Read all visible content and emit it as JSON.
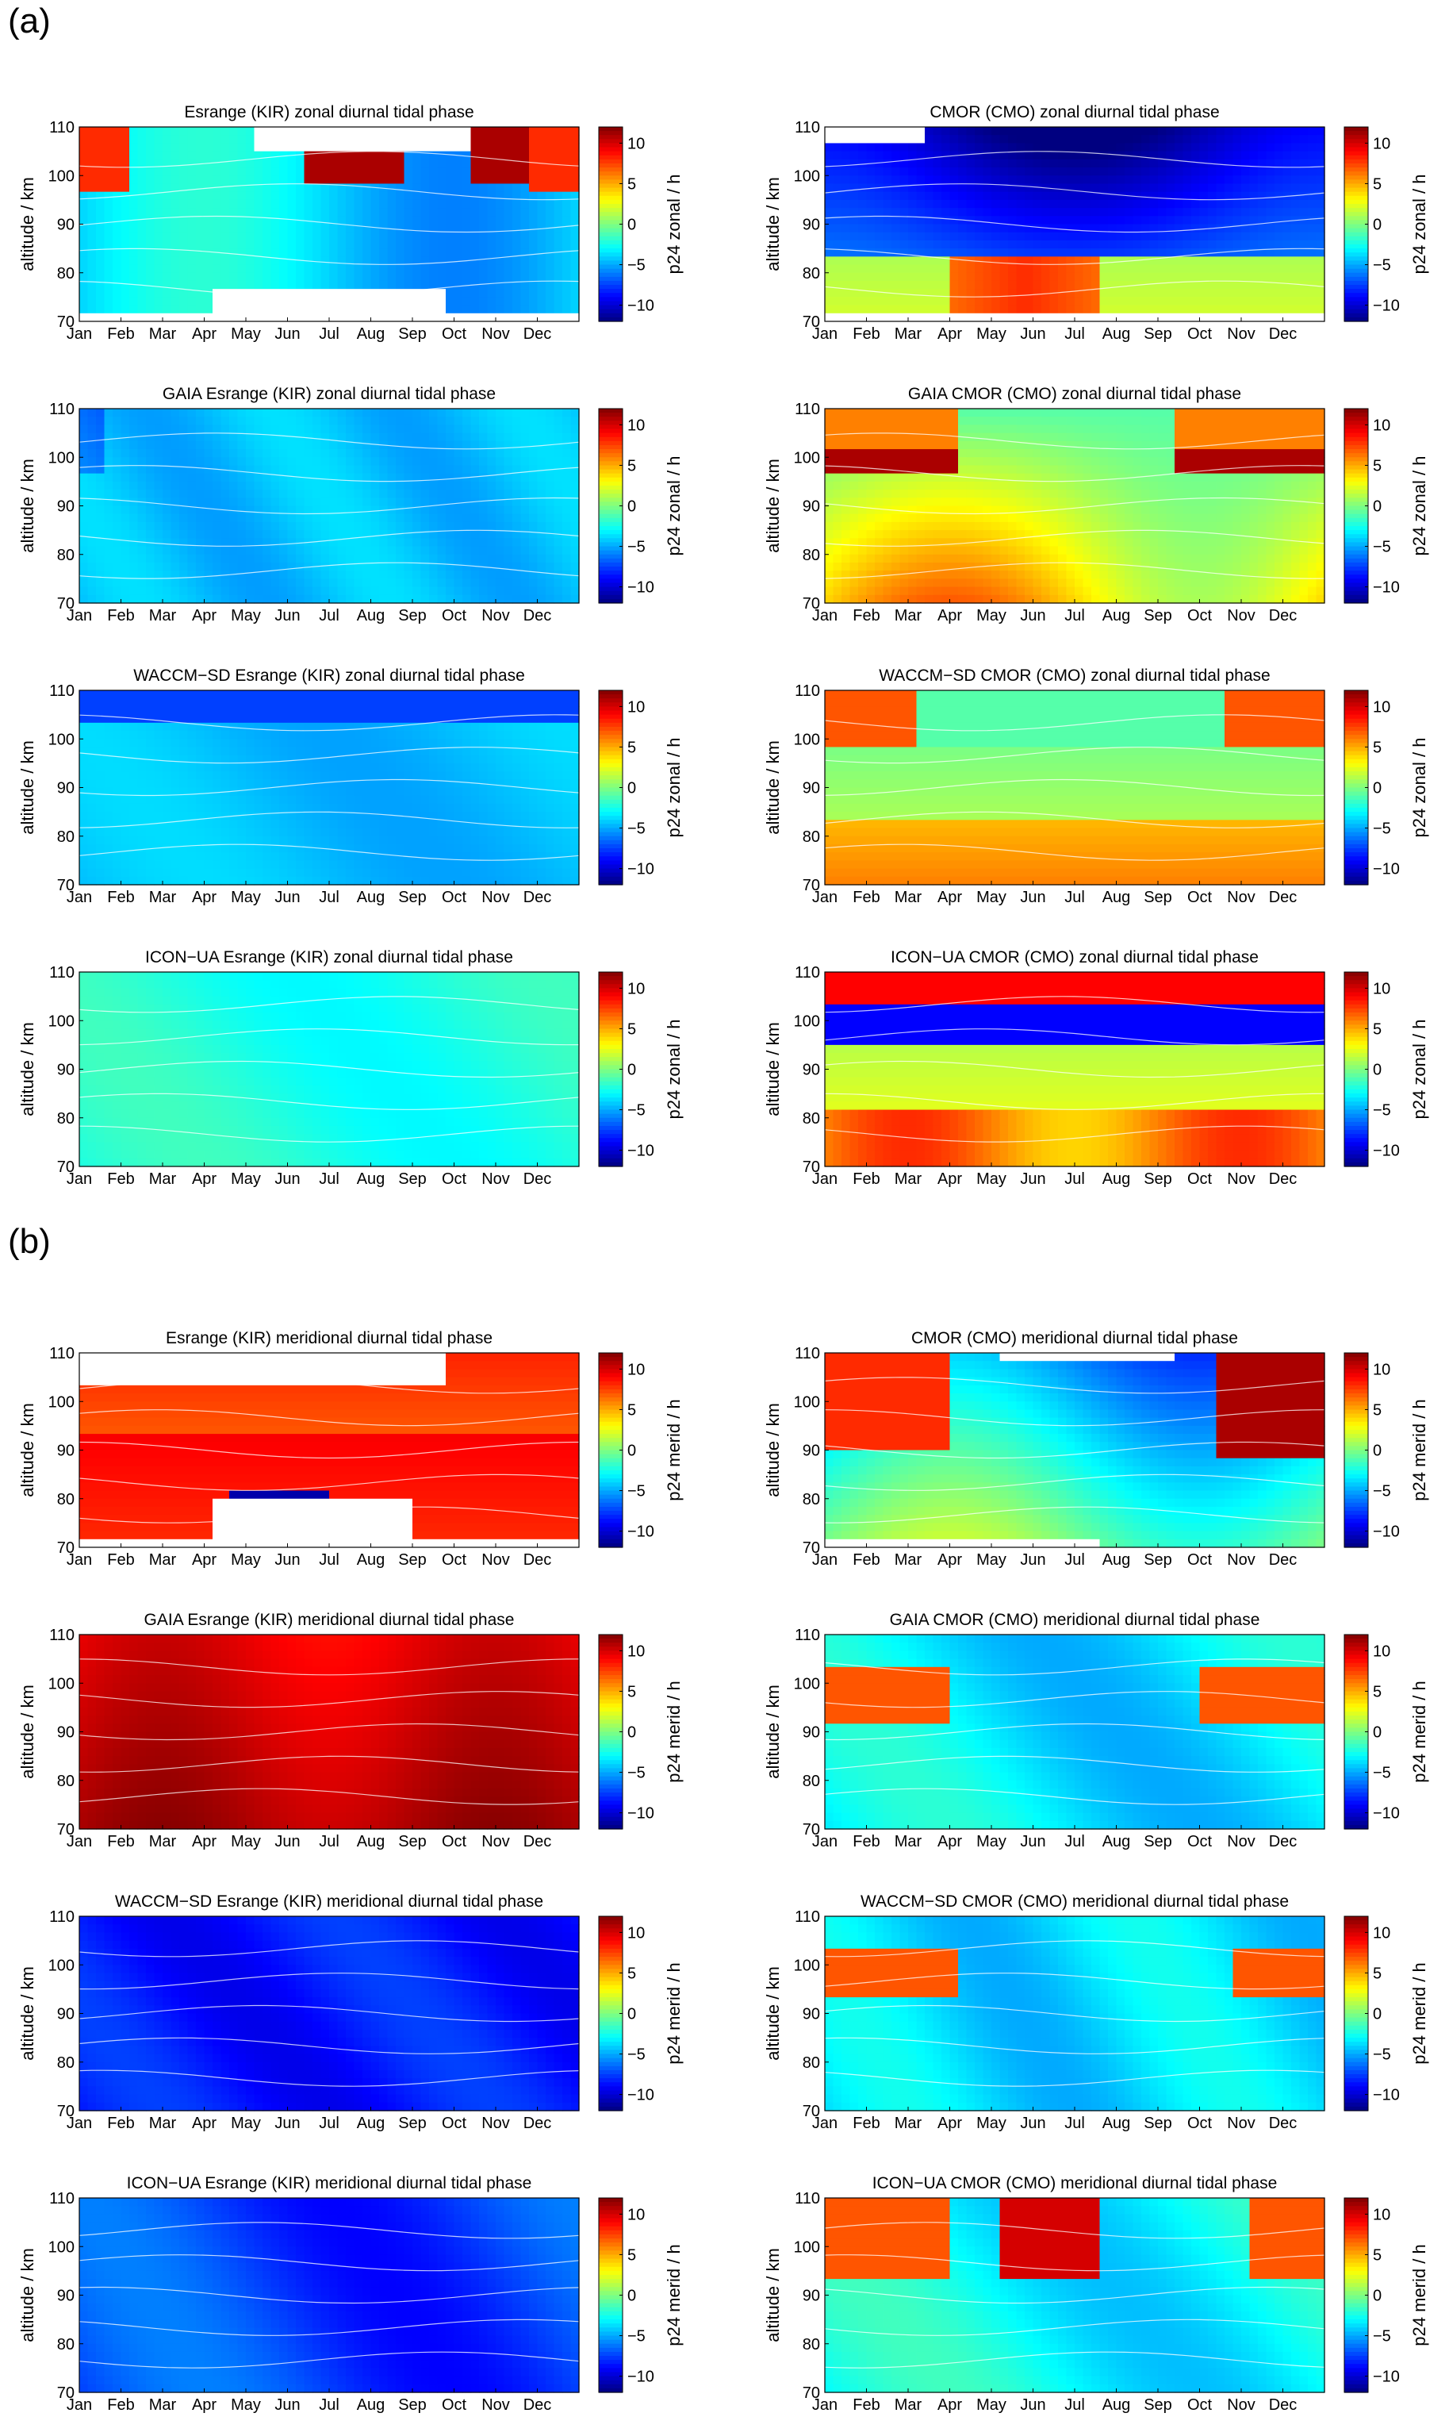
{
  "sections": [
    {
      "label": "(a)"
    },
    {
      "label": "(b)"
    }
  ],
  "chart_data": [
    {
      "type": "heatmap",
      "title": "Esrange (KIR) zonal diurnal tidal phase",
      "ylabel": "altitude / km",
      "colorbar_label": "p24 zonal / h",
      "scheme": "a_kir_obs"
    },
    {
      "type": "heatmap",
      "title": "CMOR (CMO) zonal diurnal tidal phase",
      "ylabel": "altitude / km",
      "colorbar_label": "p24 zonal / h",
      "scheme": "a_cmo_obs"
    },
    {
      "type": "heatmap",
      "title": "GAIA Esrange (KIR) zonal diurnal tidal phase",
      "ylabel": "altitude / km",
      "colorbar_label": "p24 zonal / h",
      "scheme": "a_kir_gaia"
    },
    {
      "type": "heatmap",
      "title": "GAIA CMOR (CMO) zonal diurnal tidal phase",
      "ylabel": "altitude / km",
      "colorbar_label": "p24 zonal / h",
      "scheme": "a_cmo_gaia"
    },
    {
      "type": "heatmap",
      "title": "WACCM−SD Esrange (KIR) zonal diurnal tidal phase",
      "ylabel": "altitude / km",
      "colorbar_label": "p24 zonal / h",
      "scheme": "a_kir_waccm"
    },
    {
      "type": "heatmap",
      "title": "WACCM−SD CMOR (CMO) zonal diurnal tidal phase",
      "ylabel": "altitude / km",
      "colorbar_label": "p24 zonal / h",
      "scheme": "a_cmo_waccm"
    },
    {
      "type": "heatmap",
      "title": "ICON−UA Esrange (KIR) zonal diurnal tidal phase",
      "ylabel": "altitude / km",
      "colorbar_label": "p24 zonal / h",
      "scheme": "a_kir_icon"
    },
    {
      "type": "heatmap",
      "title": "ICON−UA CMOR (CMO) zonal diurnal tidal phase",
      "ylabel": "altitude / km",
      "colorbar_label": "p24 zonal / h",
      "scheme": "a_cmo_icon"
    },
    {
      "type": "heatmap",
      "title": "Esrange (KIR) meridional diurnal tidal phase",
      "ylabel": "altitude / km",
      "colorbar_label": "p24 merid / h",
      "scheme": "b_kir_obs"
    },
    {
      "type": "heatmap",
      "title": "CMOR (CMO) meridional diurnal tidal phase",
      "ylabel": "altitude / km",
      "colorbar_label": "p24 merid / h",
      "scheme": "b_cmo_obs"
    },
    {
      "type": "heatmap",
      "title": "GAIA Esrange (KIR) meridional diurnal tidal phase",
      "ylabel": "altitude / km",
      "colorbar_label": "p24 merid / h",
      "scheme": "b_kir_gaia"
    },
    {
      "type": "heatmap",
      "title": "GAIA CMOR (CMO) meridional diurnal tidal phase",
      "ylabel": "altitude / km",
      "colorbar_label": "p24 merid / h",
      "scheme": "b_cmo_gaia"
    },
    {
      "type": "heatmap",
      "title": "WACCM−SD Esrange (KIR) meridional diurnal tidal phase",
      "ylabel": "altitude / km",
      "colorbar_label": "p24 merid / h",
      "scheme": "b_kir_waccm"
    },
    {
      "type": "heatmap",
      "title": "WACCM−SD CMOR (CMO) meridional diurnal tidal phase",
      "ylabel": "altitude / km",
      "colorbar_label": "p24 merid / h",
      "scheme": "b_cmo_waccm"
    },
    {
      "type": "heatmap",
      "title": "ICON−UA Esrange (KIR) meridional diurnal tidal phase",
      "ylabel": "altitude / km",
      "colorbar_label": "p24 merid / h",
      "scheme": "b_kir_icon"
    },
    {
      "type": "heatmap",
      "title": "ICON−UA CMOR (CMO) meridional diurnal tidal phase",
      "ylabel": "altitude / km",
      "colorbar_label": "p24 merid / h",
      "scheme": "b_cmo_icon"
    }
  ],
  "axes": {
    "x_ticks": [
      "Jan",
      "Feb",
      "Mar",
      "Apr",
      "May",
      "Jun",
      "Jul",
      "Aug",
      "Sep",
      "Oct",
      "Nov",
      "Dec"
    ],
    "y_ticks": [
      "70",
      "80",
      "90",
      "100",
      "110"
    ],
    "ylim": [
      70,
      110
    ],
    "colorbar_ticks": [
      "10",
      "5",
      "0",
      "−5",
      "−10"
    ],
    "colorbar_range": [
      -12,
      12
    ],
    "colormap": "jet"
  }
}
